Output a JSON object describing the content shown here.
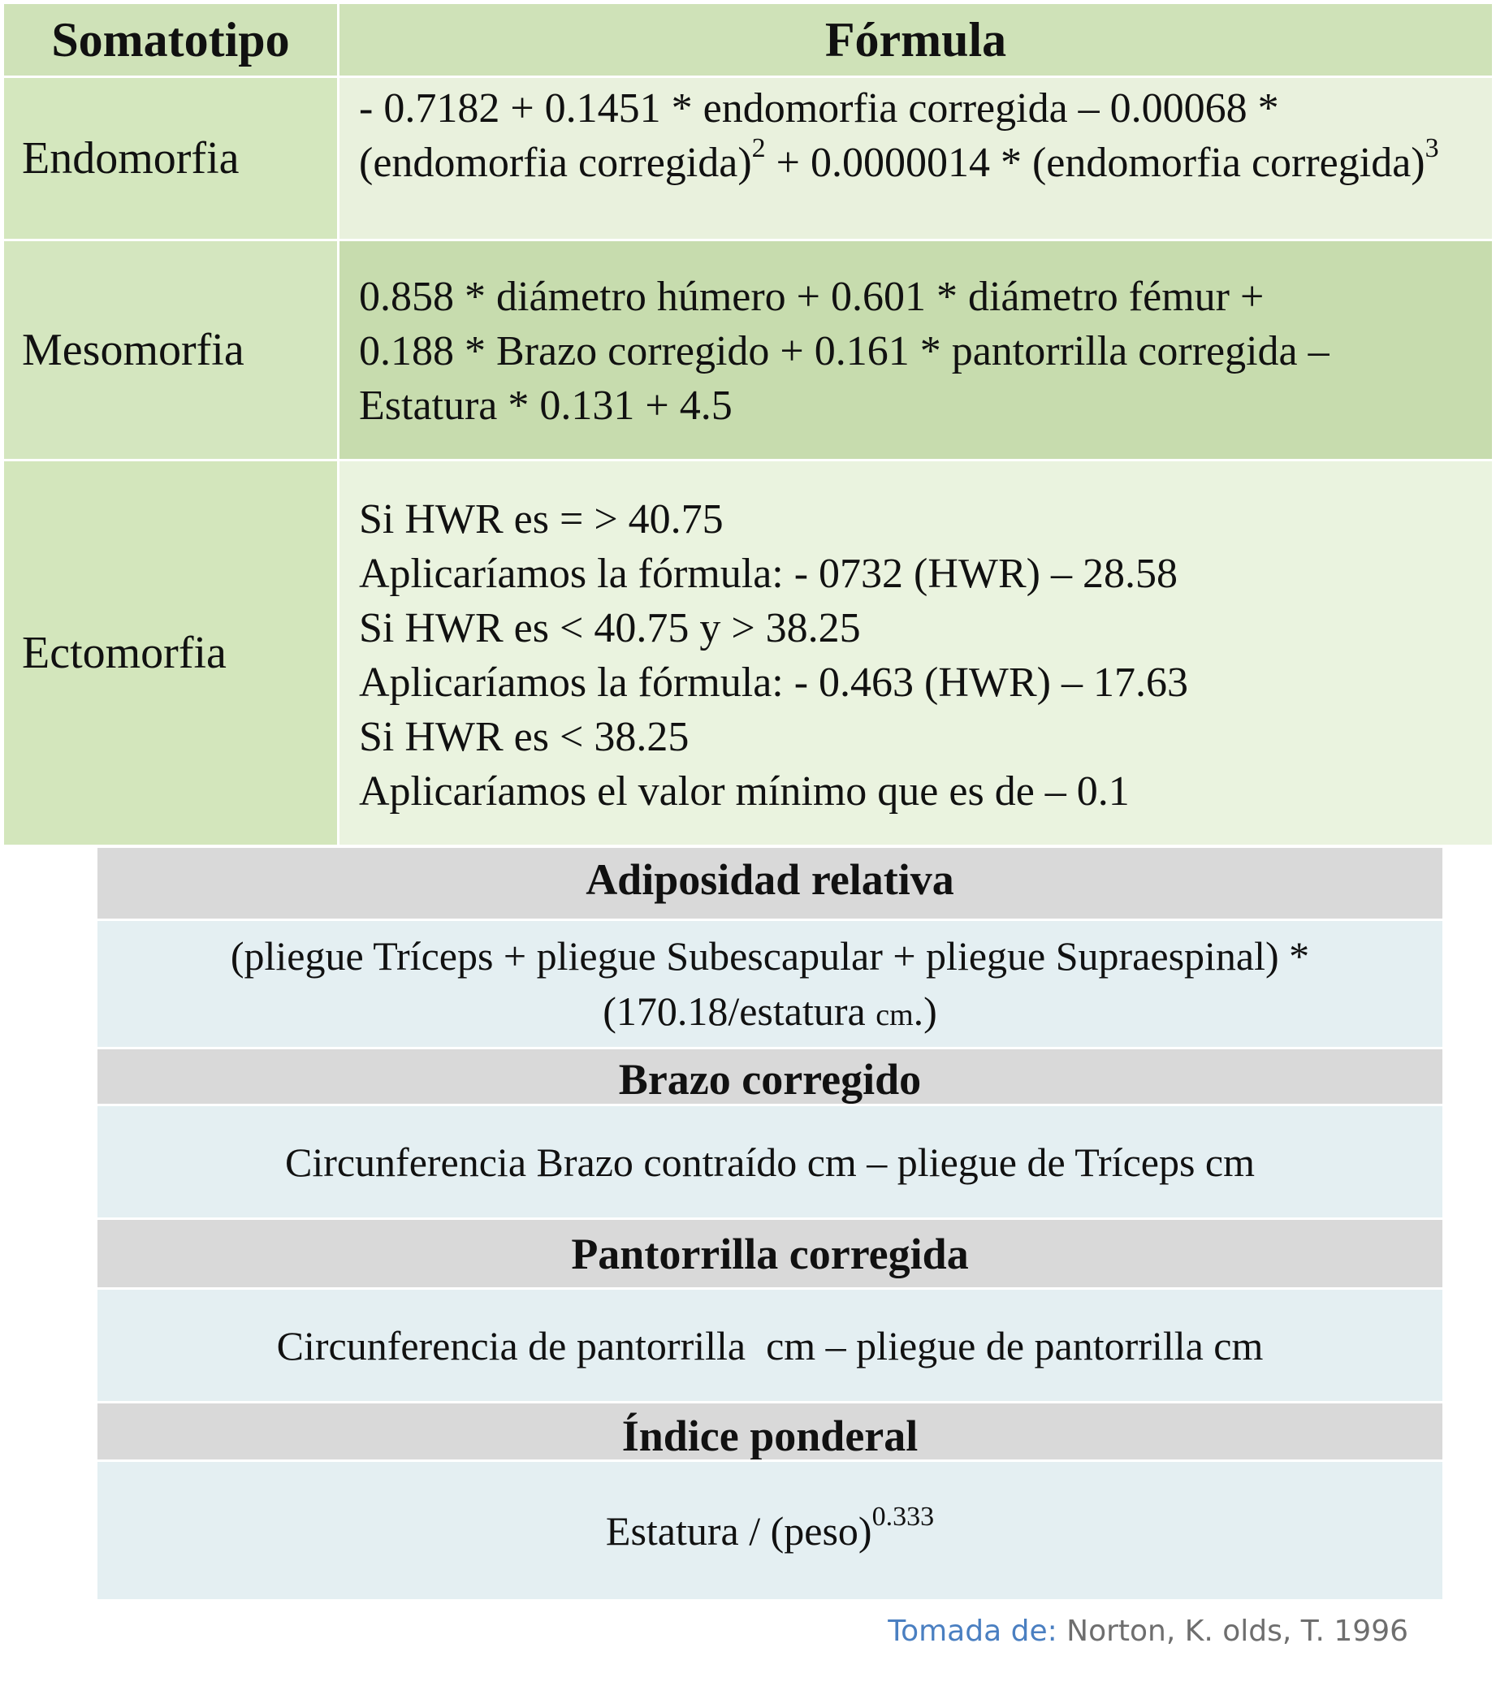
{
  "somatotype_table": {
    "headers": {
      "col1": "Somatotipo",
      "col2": "Fórmula"
    },
    "rows": [
      {
        "label": "Endomorfia",
        "formula": {
          "part1": "- 0.7182 + 0.1451 * endomorfia corregida – 0.00068 * (endomorfia corregida)",
          "sup1": "2",
          "part2": " + 0.0000014 * (endomorfia corregida)",
          "sup2": "3"
        }
      },
      {
        "label": "Mesomorfia",
        "formula": {
          "line1": "0.858 * diámetro húmero + 0.601 * diámetro fémur +",
          "line2": "0.188 * Brazo corregido  + 0.161 * pantorrilla corregida –",
          "line3": "Estatura * 0.131 + 4.5"
        }
      },
      {
        "label": "Ectomorfia",
        "lines": [
          "Si HWR es = > 40.75",
          "Aplicaríamos la fórmula: - 0732 (HWR) – 28.58",
          "Si HWR es < 40.75 y > 38.25",
          "Aplicaríamos la fórmula: - 0.463 (HWR) – 17.63",
          "Si HWR es < 38.25",
          "Aplicaríamos el valor mínimo que es de – 0.1"
        ]
      }
    ]
  },
  "definitions": {
    "adiposidad": {
      "title": "Adiposidad relativa",
      "line1": "(pliegue Tríceps + pliegue Subescapular + pliegue Supraespinal) *",
      "line2_main": "(170.18/estatura ",
      "line2_unit": "cm",
      "line2_end": ".)"
    },
    "brazo": {
      "title": "Brazo corregido",
      "formula": "Circunferencia Brazo contraído cm – pliegue de Tríceps cm"
    },
    "pantorrilla": {
      "title": "Pantorrilla corregida",
      "formula": "Circunferencia de pantorrilla  cm – pliegue de pantorrilla cm"
    },
    "indice": {
      "title": "Índice ponderal",
      "formula_main": "Estatura / (peso)",
      "formula_exp": "0.333"
    }
  },
  "source": {
    "label": "Tomada de:",
    "text": " Norton, K. olds, T. 1996"
  },
  "colors": {
    "header_green": "#cfe2b8",
    "row_green_light": "#e9f1dd",
    "row_green_mid": "#c7dcae",
    "def_head_gray": "#d9d9d9",
    "def_body_blue": "#e4eff2",
    "source_label_blue": "#4a7fc1"
  }
}
